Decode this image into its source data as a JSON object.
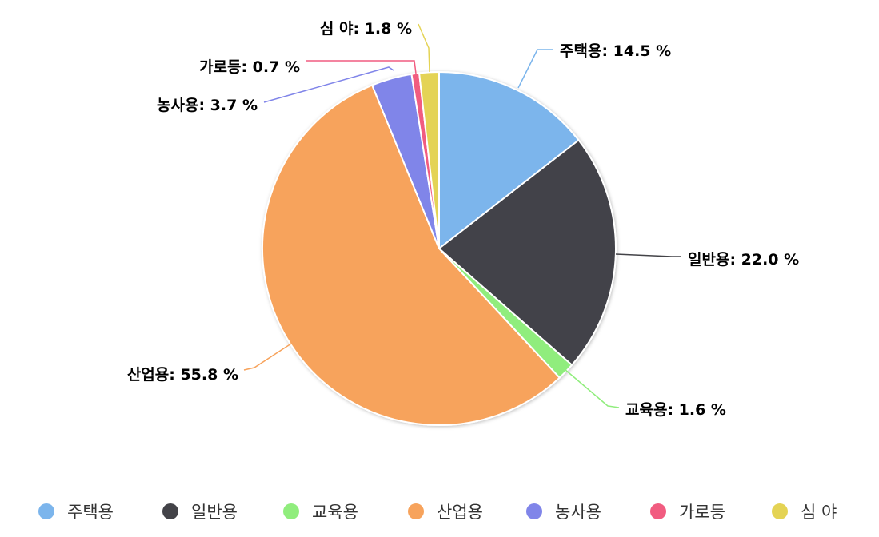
{
  "chart_data": {
    "type": "pie",
    "title": "",
    "categories": [
      "주택용",
      "일반용",
      "교육용",
      "산업용",
      "농사용",
      "가로등",
      "심 야"
    ],
    "values": [
      14.5,
      22.0,
      1.6,
      55.8,
      3.7,
      0.7,
      1.8
    ],
    "unit": "%",
    "colors": [
      "#7cb5ec",
      "#434348",
      "#90ed7d",
      "#f7a35c",
      "#8085e9",
      "#f15c80",
      "#e4d354"
    ],
    "data_labels": [
      "주택용: 14.5 %",
      "일반용: 22.0 %",
      "교육용: 1.6 %",
      "산업용: 55.8 %",
      "농사용: 3.7 %",
      "가로등: 0.7 %",
      "심 야: 1.8 %"
    ],
    "legend": {
      "position": "bottom",
      "items": [
        "주택용",
        "일반용",
        "교육용",
        "산업용",
        "농사용",
        "가로등",
        "심 야"
      ]
    }
  }
}
